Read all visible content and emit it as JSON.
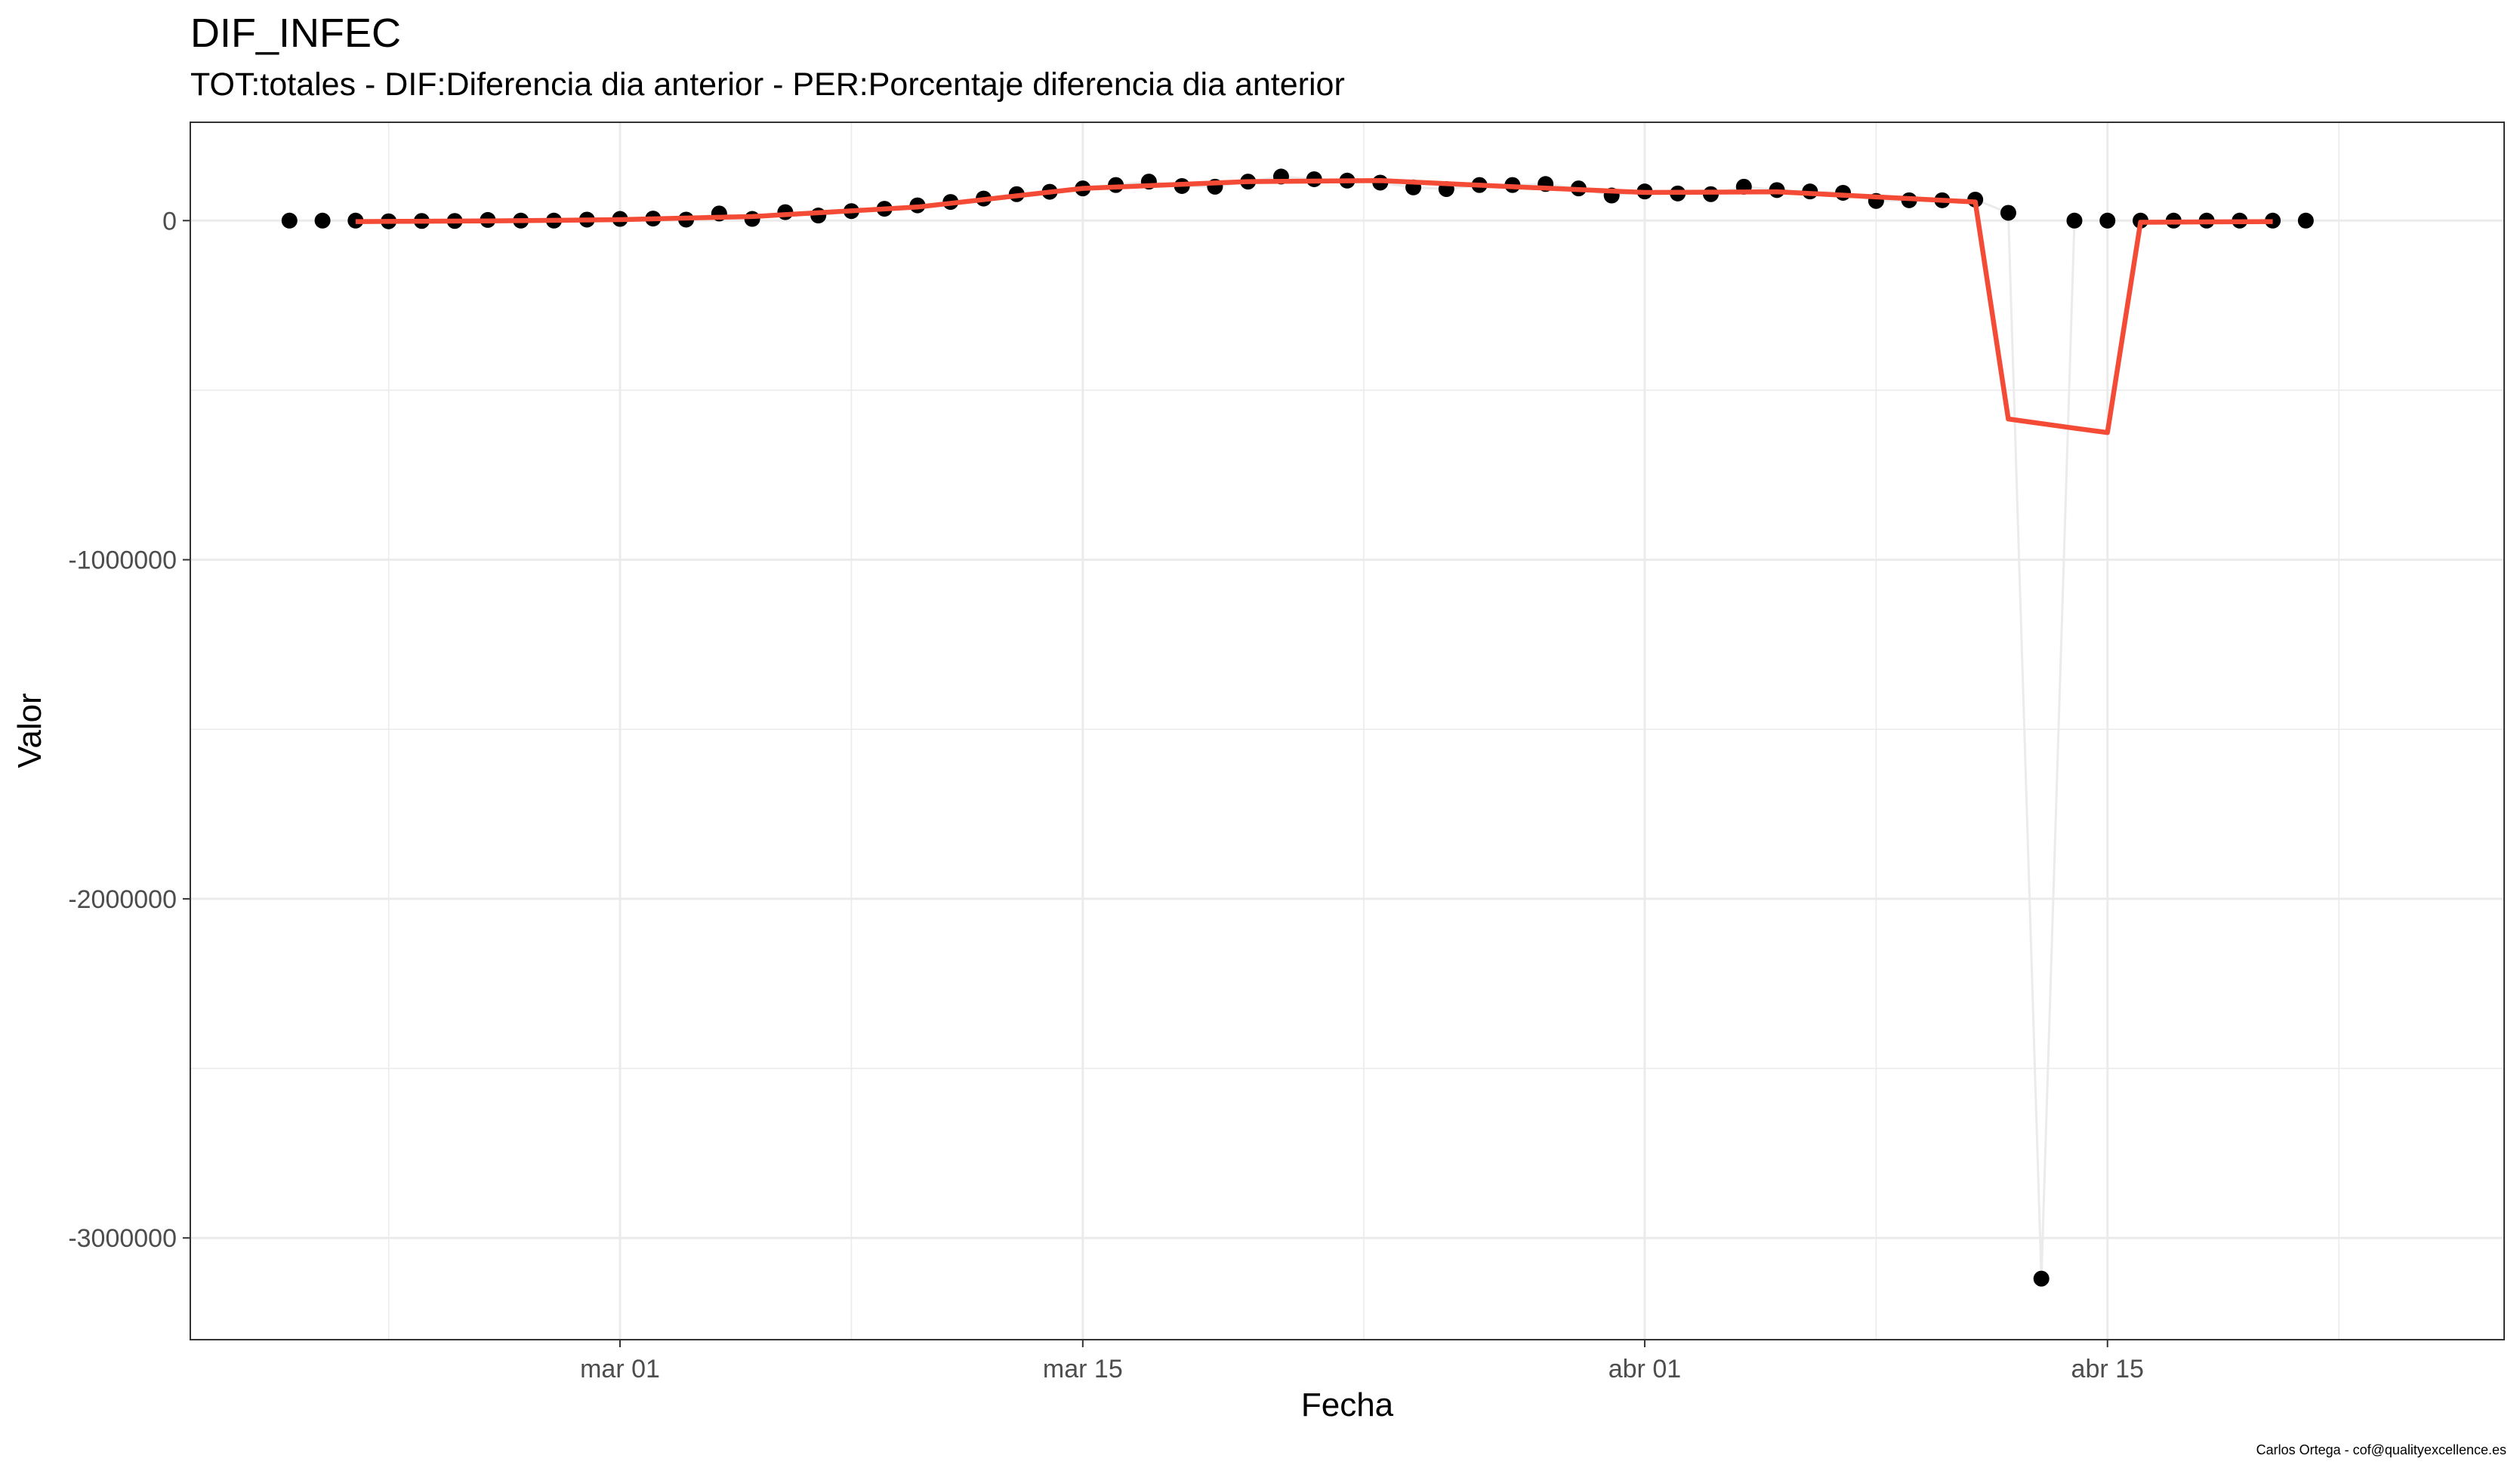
{
  "title": "DIF_INFEC",
  "subtitle": "TOT:totales - DIF:Diferencia dia anterior - PER:Porcentaje diferencia dia anterior",
  "caption": "Carlos Ortega - cof@qualityexcellence.es",
  "chart_data": {
    "type": "line",
    "xlabel": "Fecha",
    "ylabel": "Valor",
    "xlim": [
      "2020-02-17",
      "2020-04-27"
    ],
    "ylim": [
      -3300000,
      290000
    ],
    "x_ticks": [
      {
        "date": "2020-03-01",
        "label": "mar 01"
      },
      {
        "date": "2020-03-15",
        "label": "mar 15"
      },
      {
        "date": "2020-04-01",
        "label": "abr 01"
      },
      {
        "date": "2020-04-15",
        "label": "abr 15"
      }
    ],
    "y_ticks": [
      {
        "value": 0,
        "label": "0"
      },
      {
        "value": -1000000,
        "label": "-1000000"
      },
      {
        "value": -2000000,
        "label": "-2000000"
      },
      {
        "value": -3000000,
        "label": "-3000000"
      }
    ],
    "grid": true,
    "series": [
      {
        "kind": "points",
        "color": "#000000",
        "connector_color": "#ebebeb",
        "x": [
          "2020-02-20",
          "2020-02-21",
          "2020-02-22",
          "2020-02-23",
          "2020-02-24",
          "2020-02-25",
          "2020-02-26",
          "2020-02-27",
          "2020-02-28",
          "2020-02-29",
          "2020-03-01",
          "2020-03-02",
          "2020-03-03",
          "2020-03-04",
          "2020-03-05",
          "2020-03-06",
          "2020-03-07",
          "2020-03-08",
          "2020-03-09",
          "2020-03-10",
          "2020-03-11",
          "2020-03-12",
          "2020-03-13",
          "2020-03-14",
          "2020-03-15",
          "2020-03-16",
          "2020-03-17",
          "2020-03-18",
          "2020-03-19",
          "2020-03-20",
          "2020-03-21",
          "2020-03-22",
          "2020-03-23",
          "2020-03-24",
          "2020-03-25",
          "2020-03-26",
          "2020-03-27",
          "2020-03-28",
          "2020-03-29",
          "2020-03-30",
          "2020-03-31",
          "2020-04-01",
          "2020-04-02",
          "2020-04-03",
          "2020-04-04",
          "2020-04-05",
          "2020-04-06",
          "2020-04-07",
          "2020-04-08",
          "2020-04-09",
          "2020-04-10",
          "2020-04-11",
          "2020-04-12",
          "2020-04-13",
          "2020-04-14",
          "2020-04-15",
          "2020-04-16",
          "2020-04-17",
          "2020-04-18",
          "2020-04-19",
          "2020-04-20",
          "2020-04-21"
        ],
        "y": [
          0,
          0,
          0,
          -2000,
          -1000,
          -1000,
          2000,
          0,
          0,
          3000,
          5000,
          6000,
          3000,
          21000,
          5000,
          25000,
          15000,
          28000,
          35000,
          45000,
          55000,
          65000,
          78000,
          85000,
          95000,
          105000,
          115000,
          102000,
          100000,
          115000,
          130000,
          122000,
          118000,
          112000,
          98000,
          93000,
          105000,
          105000,
          108000,
          95000,
          74000,
          86000,
          80000,
          78000,
          100000,
          90000,
          86000,
          82000,
          58000,
          60000,
          60000,
          62000,
          23000,
          -3120000,
          0,
          0,
          0,
          0,
          0,
          0,
          0,
          0
        ]
      },
      {
        "kind": "smooth",
        "color": "#f44b37",
        "x": [
          "2020-02-22",
          "2020-02-26",
          "2020-03-01",
          "2020-03-05",
          "2020-03-10",
          "2020-03-15",
          "2020-03-20",
          "2020-03-24",
          "2020-03-28",
          "2020-04-01",
          "2020-04-05",
          "2020-04-11",
          "2020-04-12",
          "2020-04-14",
          "2020-04-15",
          "2020-04-16",
          "2020-04-20"
        ],
        "y": [
          -3000,
          -1000,
          3000,
          12000,
          40000,
          95000,
          115000,
          118000,
          100000,
          83000,
          85000,
          55000,
          -585000,
          -612000,
          -625000,
          -5000,
          -3000
        ]
      }
    ]
  }
}
